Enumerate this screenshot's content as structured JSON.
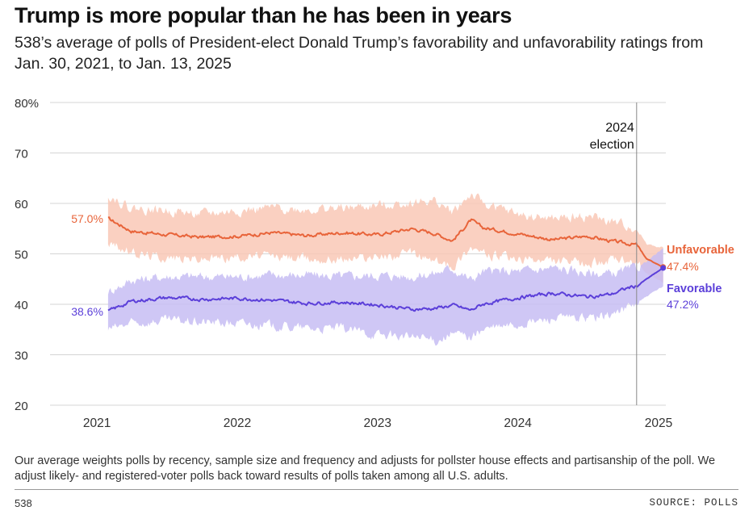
{
  "header": {
    "title": "Trump is more popular than he has been in years",
    "subtitle": "538’s average of polls of President-elect Donald Trump’s favorability and unfavorability ratings from Jan. 30, 2021, to Jan. 13, 2025"
  },
  "footer": {
    "note": "Our average weights polls by recency, sample size and frequency and adjusts for pollster house effects and partisanship of the poll. We adjust likely- and registered-voter polls back toward results of polls taken among all U.S. adults.",
    "brand": "538",
    "source": "SOURCE: POLLS"
  },
  "colors": {
    "unfavorable": "#e8643a",
    "unfavorable_band": "#f9c8b6",
    "favorable": "#5b3fd9",
    "favorable_band": "#c7bdf3",
    "grid": "#d4d4d4",
    "axis_text": "#333333"
  },
  "chart_data": {
    "type": "line",
    "title": "Trump is more popular than he has been in years",
    "x_ticks": [
      "2021",
      "2022",
      "2023",
      "2024",
      "2025"
    ],
    "y_ticks": [
      "80%",
      "70",
      "60",
      "50",
      "40",
      "30",
      "20"
    ],
    "ylim": [
      20,
      80
    ],
    "xlim": [
      "2020-09-01",
      "2025-01-20"
    ],
    "grid": "horizontal",
    "annotation": {
      "date": "2024-11-05",
      "label_line1": "2024",
      "label_line2": "election"
    },
    "start_labels": {
      "unfavorable": "57.0%",
      "favorable": "38.6%"
    },
    "end_labels": {
      "unfavorable_name": "Unfavorable",
      "unfavorable_value": "47.4%",
      "favorable_name": "Favorable",
      "favorable_value": "47.2%"
    },
    "dates": [
      "2021-01-30",
      "2021-04-01",
      "2021-07-01",
      "2021-10-01",
      "2022-01-01",
      "2022-04-01",
      "2022-07-01",
      "2022-10-01",
      "2023-01-01",
      "2023-04-01",
      "2023-06-01",
      "2023-07-15",
      "2023-09-01",
      "2023-10-01",
      "2024-01-01",
      "2024-04-01",
      "2024-07-01",
      "2024-09-01",
      "2024-10-15",
      "2024-11-05",
      "2024-12-01",
      "2025-01-13"
    ],
    "series": [
      {
        "name": "Unfavorable",
        "values": [
          57.0,
          54.5,
          53.8,
          53.3,
          53.5,
          54.2,
          53.6,
          54.2,
          53.8,
          55.0,
          54.0,
          52.6,
          56.7,
          55.2,
          54.0,
          52.8,
          53.5,
          52.5,
          52.0,
          51.8,
          49.0,
          47.4
        ],
        "band_upper": [
          61.8,
          59.0,
          58.6,
          57.8,
          58.5,
          59.0,
          58.8,
          59.0,
          59.5,
          60.2,
          60.5,
          58.2,
          61.8,
          60.0,
          57.8,
          56.8,
          57.5,
          56.2,
          55.5,
          55.0,
          52.0,
          51.2
        ],
        "band_lower": [
          52.2,
          50.2,
          49.3,
          49.0,
          49.5,
          49.5,
          49.0,
          49.0,
          49.5,
          50.0,
          48.5,
          47.5,
          51.6,
          50.0,
          48.8,
          48.5,
          48.0,
          48.8,
          48.2,
          48.0,
          46.2,
          44.2
        ]
      },
      {
        "name": "Favorable",
        "values": [
          38.6,
          40.6,
          41.3,
          41.0,
          41.2,
          40.8,
          40.2,
          40.4,
          39.9,
          39.0,
          39.2,
          39.8,
          38.8,
          40.0,
          41.3,
          42.2,
          41.5,
          42.0,
          43.3,
          43.6,
          45.0,
          47.2
        ],
        "band_upper": [
          42.5,
          44.8,
          45.5,
          45.5,
          45.5,
          45.8,
          45.8,
          45.5,
          45.8,
          45.5,
          46.2,
          47.2,
          44.8,
          46.5,
          46.5,
          47.2,
          46.2,
          46.0,
          46.8,
          47.2,
          48.5,
          51.0
        ],
        "band_lower": [
          35.0,
          36.2,
          36.8,
          36.5,
          36.2,
          35.8,
          35.2,
          35.2,
          34.0,
          33.5,
          32.8,
          34.2,
          33.5,
          35.0,
          36.0,
          37.2,
          37.2,
          38.0,
          39.5,
          40.2,
          41.5,
          43.5
        ]
      }
    ]
  }
}
